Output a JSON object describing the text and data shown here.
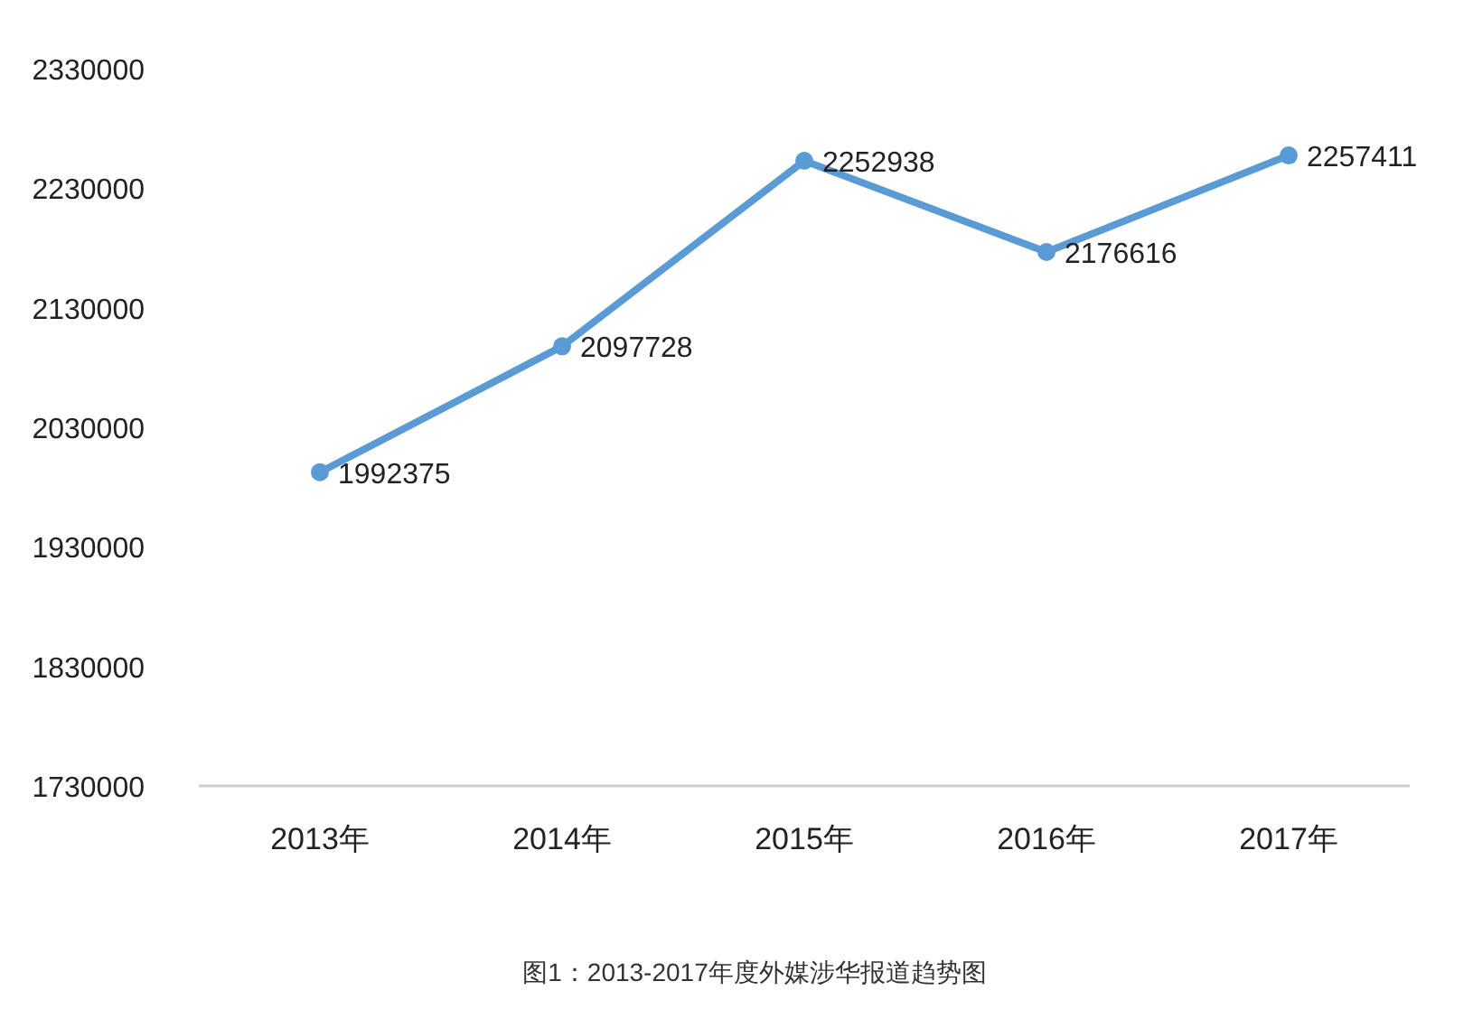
{
  "chart_data": {
    "type": "line",
    "categories": [
      "2013年",
      "2014年",
      "2015年",
      "2016年",
      "2017年"
    ],
    "values": [
      1992375,
      2097728,
      2252938,
      2176616,
      2257411
    ],
    "color": "#5b9bd5",
    "marker": "circle",
    "line_style": "solid",
    "data_labels": true,
    "grid": false,
    "ylim": [
      1730000,
      2330000
    ],
    "yticks": [
      1730000,
      1830000,
      1930000,
      2030000,
      2130000,
      2230000,
      2330000
    ],
    "annotations": [
      "图1：2013-2017年度外媒涉华报道趋势图"
    ]
  }
}
